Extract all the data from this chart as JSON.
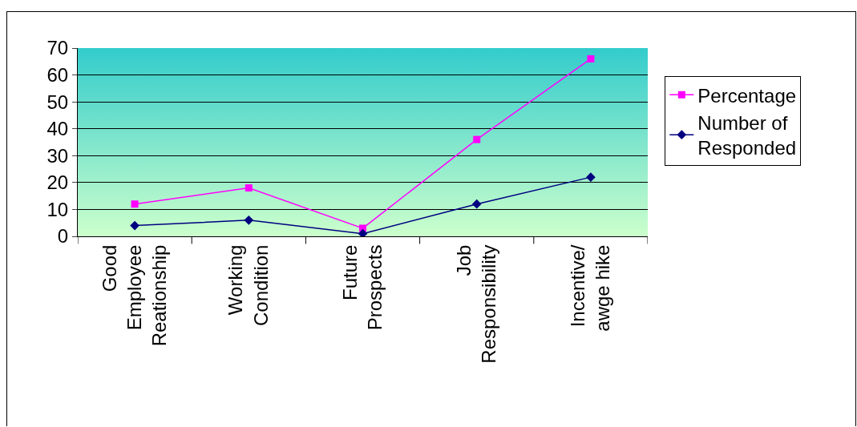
{
  "chart_data": {
    "type": "line",
    "categories": [
      "Good\nEmployee\nReationship",
      "Working\nCondition",
      "Future\nProspects",
      "Job\nResponsibility",
      "Incentive/\nawge hike"
    ],
    "series": [
      {
        "name": "Percentage",
        "color": "#ff00ff",
        "marker": "square",
        "values": [
          12,
          18,
          3,
          36,
          66
        ]
      },
      {
        "name": "Number of\nResponded",
        "color": "#000080",
        "marker": "diamond",
        "values": [
          4,
          6,
          1,
          12,
          22
        ]
      }
    ],
    "ylim": [
      0,
      70
    ],
    "yticks": [
      0,
      10,
      20,
      30,
      40,
      50,
      60,
      70
    ],
    "grid": "y",
    "legend": "right",
    "line_style": "solid"
  }
}
